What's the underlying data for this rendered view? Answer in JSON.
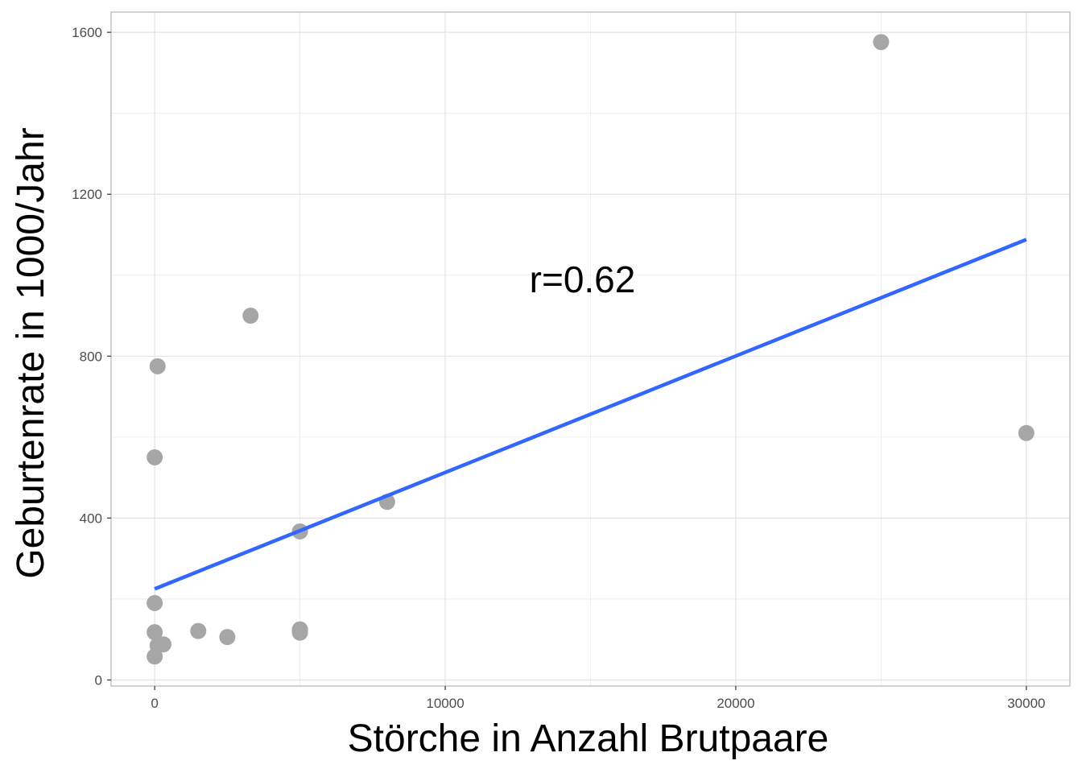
{
  "chart_data": {
    "type": "scatter",
    "xlabel": "Störche in Anzahl Brutpaare",
    "ylabel": "Geburtenrate in 1000/Jahr",
    "xlim": [
      -1500,
      31500
    ],
    "ylim": [
      -15,
      1650
    ],
    "x_ticks": [
      0,
      10000,
      20000,
      30000
    ],
    "x_tick_labels": [
      "0",
      "10000",
      "20000",
      "30000"
    ],
    "y_ticks": [
      0,
      400,
      800,
      1200,
      1600
    ],
    "y_tick_labels": [
      "0",
      "400",
      "800",
      "1200",
      "1600"
    ],
    "grid": true,
    "points": {
      "x": [
        100,
        3300,
        0,
        5000,
        8000,
        0,
        0,
        1500,
        5000,
        5000,
        2500,
        300,
        100,
        0,
        25000,
        30000
      ],
      "y": [
        775,
        900,
        550,
        367,
        440,
        190,
        118,
        121,
        125,
        117,
        106,
        88,
        85,
        58,
        1576,
        610
      ],
      "color": "#a6a6a6"
    },
    "regression_line": {
      "x": [
        0,
        30000
      ],
      "y": [
        225,
        1088
      ],
      "color": "#3366ff"
    },
    "annotation": {
      "text": "r=0.62",
      "x": 15000,
      "y": 990
    },
    "panel_border_color": "#b3b3b3",
    "grid_color": "#ebebeb"
  }
}
